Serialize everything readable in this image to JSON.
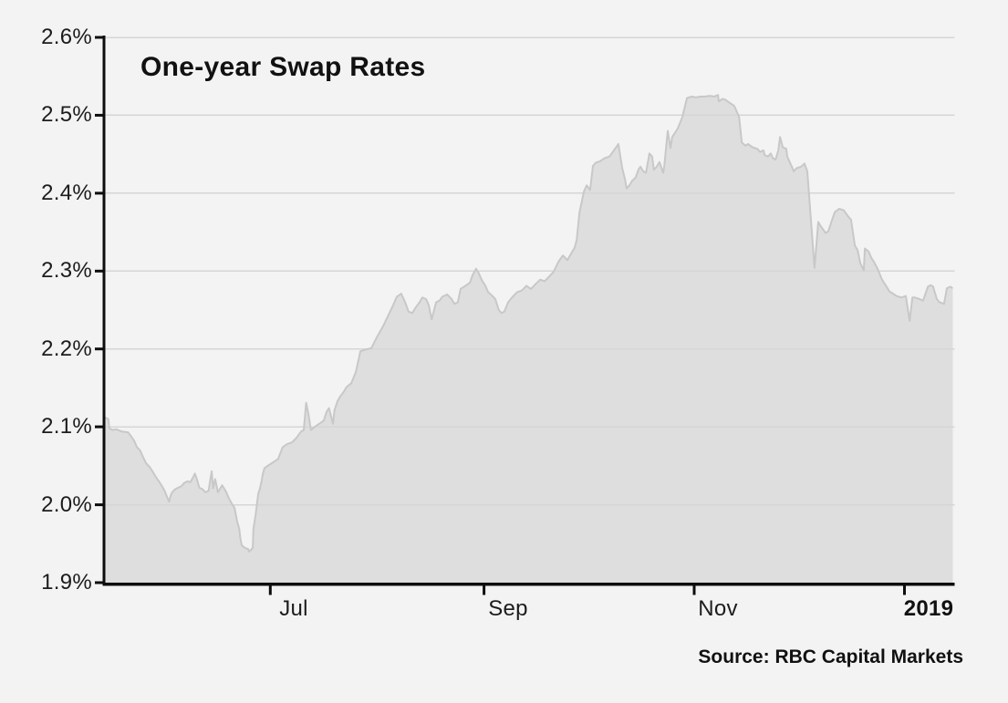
{
  "chart_data": {
    "type": "area",
    "title": "One-year Swap Rates",
    "source": "Source: RBC Capital Markets",
    "legend": false,
    "grid": true,
    "y_axis": {
      "min": 1.9,
      "max": 2.6,
      "step": 0.1,
      "unit": "%",
      "labels": [
        "2.6%",
        "2.5%",
        "2.4%",
        "2.3%",
        "2.2%",
        "2.1%",
        "2.0%",
        "1.9%"
      ]
    },
    "x_axis": {
      "description": "time, daily observations; day 0 = left edge of plot (~mid-May), ticks at month starts",
      "domain_days": [
        0,
        246
      ],
      "ticks": [
        {
          "day": 48,
          "label": "Jul",
          "bold": false
        },
        {
          "day": 110,
          "label": "Sep",
          "bold": false
        },
        {
          "day": 171,
          "label": "Nov",
          "bold": false
        },
        {
          "day": 232,
          "label": "2019",
          "bold": true
        }
      ]
    },
    "colors": {
      "background": "#f3f3f3",
      "area_fill": "#dedede",
      "line": "#c8c8c8",
      "gridline": "#d6d6d6",
      "axis": "#0d0d0d",
      "text": "#1a1a1a"
    },
    "series": [
      {
        "name": "One-year swap rate (%)",
        "points": [
          [
            0,
            2.112
          ],
          [
            1,
            2.11
          ],
          [
            1.3,
            2.098
          ],
          [
            2.3,
            2.096
          ],
          [
            3.2,
            2.097
          ],
          [
            4.9,
            2.094
          ],
          [
            6.7,
            2.093
          ],
          [
            7.6,
            2.088
          ],
          [
            8.5,
            2.082
          ],
          [
            9.3,
            2.074
          ],
          [
            10.2,
            2.07
          ],
          [
            11.1,
            2.061
          ],
          [
            12,
            2.053
          ],
          [
            12.9,
            2.049
          ],
          [
            13.8,
            2.043
          ],
          [
            14.6,
            2.037
          ],
          [
            15.5,
            2.031
          ],
          [
            16.4,
            2.025
          ],
          [
            17.3,
            2.018
          ],
          [
            18.2,
            2.008
          ],
          [
            18.6,
            2.004
          ],
          [
            19.1,
            2.012
          ],
          [
            19.5,
            2.016
          ],
          [
            20.4,
            2.02
          ],
          [
            21.3,
            2.022
          ],
          [
            22.2,
            2.024
          ],
          [
            23,
            2.028
          ],
          [
            23.9,
            2.03
          ],
          [
            24.8,
            2.029
          ],
          [
            25.7,
            2.036
          ],
          [
            26.1,
            2.04
          ],
          [
            26.6,
            2.034
          ],
          [
            27.4,
            2.022
          ],
          [
            28.3,
            2.02
          ],
          [
            29.2,
            2.016
          ],
          [
            30.1,
            2.018
          ],
          [
            30.5,
            2.03
          ],
          [
            31,
            2.043
          ],
          [
            31.4,
            2.021
          ],
          [
            32,
            2.033
          ],
          [
            32.8,
            2.016
          ],
          [
            34,
            2.025
          ],
          [
            35,
            2.018
          ],
          [
            36,
            2.008
          ],
          [
            37,
            2.0
          ],
          [
            37.6,
            1.996
          ],
          [
            38.4,
            1.978
          ],
          [
            39,
            1.969
          ],
          [
            39.3,
            1.957
          ],
          [
            39.7,
            1.948
          ],
          [
            40.5,
            1.945
          ],
          [
            41.6,
            1.943
          ],
          [
            41.8,
            1.94
          ],
          [
            42.4,
            1.942
          ],
          [
            42.9,
            1.945
          ],
          [
            43.1,
            1.969
          ],
          [
            43.7,
            1.986
          ],
          [
            44.2,
            2.004
          ],
          [
            44.5,
            2.014
          ],
          [
            45,
            2.021
          ],
          [
            45.5,
            2.031
          ],
          [
            45.8,
            2.039
          ],
          [
            46.3,
            2.047
          ],
          [
            47.6,
            2.051
          ],
          [
            49,
            2.055
          ],
          [
            50.3,
            2.059
          ],
          [
            50.8,
            2.065
          ],
          [
            51.6,
            2.074
          ],
          [
            52.9,
            2.078
          ],
          [
            54.3,
            2.08
          ],
          [
            55.6,
            2.086
          ],
          [
            56.9,
            2.094
          ],
          [
            57.7,
            2.096
          ],
          [
            58.4,
            2.131
          ],
          [
            59,
            2.118
          ],
          [
            59.8,
            2.096
          ],
          [
            60.9,
            2.1
          ],
          [
            62.2,
            2.104
          ],
          [
            63.5,
            2.108
          ],
          [
            64.3,
            2.119
          ],
          [
            65,
            2.124
          ],
          [
            66.2,
            2.104
          ],
          [
            66.6,
            2.121
          ],
          [
            67.5,
            2.133
          ],
          [
            68.3,
            2.139
          ],
          [
            69.3,
            2.145
          ],
          [
            70.1,
            2.151
          ],
          [
            71.5,
            2.156
          ],
          [
            72.8,
            2.17
          ],
          [
            73.3,
            2.18
          ],
          [
            74.1,
            2.197
          ],
          [
            75.4,
            2.199
          ],
          [
            77.3,
            2.201
          ],
          [
            78.9,
            2.215
          ],
          [
            80.7,
            2.229
          ],
          [
            82,
            2.241
          ],
          [
            83.4,
            2.254
          ],
          [
            84.7,
            2.267
          ],
          [
            86,
            2.271
          ],
          [
            87.3,
            2.258
          ],
          [
            88.1,
            2.248
          ],
          [
            89.2,
            2.246
          ],
          [
            90,
            2.252
          ],
          [
            91.3,
            2.26
          ],
          [
            92.1,
            2.266
          ],
          [
            93.2,
            2.264
          ],
          [
            94,
            2.256
          ],
          [
            94.8,
            2.238
          ],
          [
            96.1,
            2.26
          ],
          [
            97.1,
            2.262
          ],
          [
            97.9,
            2.267
          ],
          [
            99.3,
            2.27
          ],
          [
            100.6,
            2.264
          ],
          [
            101.4,
            2.258
          ],
          [
            102.4,
            2.26
          ],
          [
            103.2,
            2.277
          ],
          [
            104.6,
            2.281
          ],
          [
            105.9,
            2.285
          ],
          [
            106.7,
            2.295
          ],
          [
            107.7,
            2.303
          ],
          [
            108.5,
            2.297
          ],
          [
            109.3,
            2.289
          ],
          [
            110.4,
            2.281
          ],
          [
            111.2,
            2.273
          ],
          [
            112,
            2.27
          ],
          [
            113.3,
            2.264
          ],
          [
            114.3,
            2.25
          ],
          [
            115.1,
            2.246
          ],
          [
            115.9,
            2.248
          ],
          [
            117,
            2.26
          ],
          [
            118.3,
            2.267
          ],
          [
            119.6,
            2.273
          ],
          [
            121,
            2.275
          ],
          [
            122.3,
            2.281
          ],
          [
            123.6,
            2.277
          ],
          [
            124.9,
            2.283
          ],
          [
            126.3,
            2.289
          ],
          [
            127.6,
            2.287
          ],
          [
            128.9,
            2.293
          ],
          [
            130.2,
            2.299
          ],
          [
            131.6,
            2.312
          ],
          [
            132.9,
            2.32
          ],
          [
            134.2,
            2.314
          ],
          [
            135.5,
            2.324
          ],
          [
            136.3,
            2.33
          ],
          [
            136.9,
            2.34
          ],
          [
            137.7,
            2.375
          ],
          [
            139,
            2.402
          ],
          [
            139.8,
            2.41
          ],
          [
            140.8,
            2.404
          ],
          [
            141.6,
            2.435
          ],
          [
            142.4,
            2.439
          ],
          [
            143.7,
            2.441
          ],
          [
            145,
            2.445
          ],
          [
            146.4,
            2.447
          ],
          [
            147.7,
            2.455
          ],
          [
            149,
            2.463
          ],
          [
            150.1,
            2.432
          ],
          [
            150.9,
            2.418
          ],
          [
            151.4,
            2.406
          ],
          [
            152.2,
            2.41
          ],
          [
            153,
            2.416
          ],
          [
            154,
            2.42
          ],
          [
            154.8,
            2.43
          ],
          [
            155.4,
            2.434
          ],
          [
            156.2,
            2.428
          ],
          [
            157,
            2.426
          ],
          [
            158,
            2.451
          ],
          [
            158.8,
            2.447
          ],
          [
            159.3,
            2.43
          ],
          [
            160.1,
            2.434
          ],
          [
            160.9,
            2.44
          ],
          [
            162,
            2.426
          ],
          [
            162.3,
            2.435
          ],
          [
            163.3,
            2.48
          ],
          [
            164.1,
            2.458
          ],
          [
            164.6,
            2.472
          ],
          [
            166.2,
            2.483
          ],
          [
            167.5,
            2.497
          ],
          [
            168.9,
            2.522
          ],
          [
            170.2,
            2.524
          ],
          [
            171.5,
            2.523
          ],
          [
            172.8,
            2.524
          ],
          [
            174.2,
            2.524
          ],
          [
            175.5,
            2.525
          ],
          [
            176.8,
            2.524
          ],
          [
            177.9,
            2.526
          ],
          [
            178.1,
            2.518
          ],
          [
            179.2,
            2.521
          ],
          [
            180,
            2.52
          ],
          [
            181.3,
            2.516
          ],
          [
            182.6,
            2.512
          ],
          [
            183.4,
            2.504
          ],
          [
            184,
            2.498
          ],
          [
            184.8,
            2.465
          ],
          [
            185.8,
            2.461
          ],
          [
            186.6,
            2.463
          ],
          [
            187.9,
            2.459
          ],
          [
            189.3,
            2.457
          ],
          [
            190.1,
            2.453
          ],
          [
            191.1,
            2.455
          ],
          [
            191.4,
            2.449
          ],
          [
            192.4,
            2.447
          ],
          [
            193.2,
            2.451
          ],
          [
            193.8,
            2.445
          ],
          [
            194.6,
            2.443
          ],
          [
            195.4,
            2.455
          ],
          [
            195.9,
            2.472
          ],
          [
            196.7,
            2.459
          ],
          [
            197.7,
            2.457
          ],
          [
            198,
            2.447
          ],
          [
            199.3,
            2.434
          ],
          [
            199.9,
            2.428
          ],
          [
            200.7,
            2.432
          ],
          [
            202,
            2.434
          ],
          [
            203,
            2.438
          ],
          [
            203.8,
            2.428
          ],
          [
            204.8,
            2.37
          ],
          [
            205.9,
            2.304
          ],
          [
            207,
            2.363
          ],
          [
            207.8,
            2.357
          ],
          [
            209.1,
            2.349
          ],
          [
            209.9,
            2.351
          ],
          [
            211,
            2.366
          ],
          [
            211.8,
            2.376
          ],
          [
            213.1,
            2.38
          ],
          [
            214.4,
            2.378
          ],
          [
            215.7,
            2.37
          ],
          [
            216.5,
            2.366
          ],
          [
            217.6,
            2.333
          ],
          [
            218.4,
            2.327
          ],
          [
            219.2,
            2.31
          ],
          [
            220.2,
            2.301
          ],
          [
            220.5,
            2.329
          ],
          [
            221.6,
            2.325
          ],
          [
            222.4,
            2.317
          ],
          [
            223.1,
            2.312
          ],
          [
            224.2,
            2.303
          ],
          [
            225.5,
            2.289
          ],
          [
            226.8,
            2.28
          ],
          [
            227.6,
            2.274
          ],
          [
            229,
            2.27
          ],
          [
            229.7,
            2.268
          ],
          [
            231.1,
            2.266
          ],
          [
            232.4,
            2.268
          ],
          [
            233.5,
            2.236
          ],
          [
            234.3,
            2.266
          ],
          [
            235,
            2.266
          ],
          [
            236.4,
            2.264
          ],
          [
            237.4,
            2.262
          ],
          [
            238.8,
            2.28
          ],
          [
            239.6,
            2.282
          ],
          [
            240.3,
            2.28
          ],
          [
            241.4,
            2.264
          ],
          [
            242.2,
            2.26
          ],
          [
            243.5,
            2.258
          ],
          [
            244.3,
            2.278
          ],
          [
            245.3,
            2.28
          ],
          [
            246,
            2.278
          ]
        ]
      }
    ]
  }
}
